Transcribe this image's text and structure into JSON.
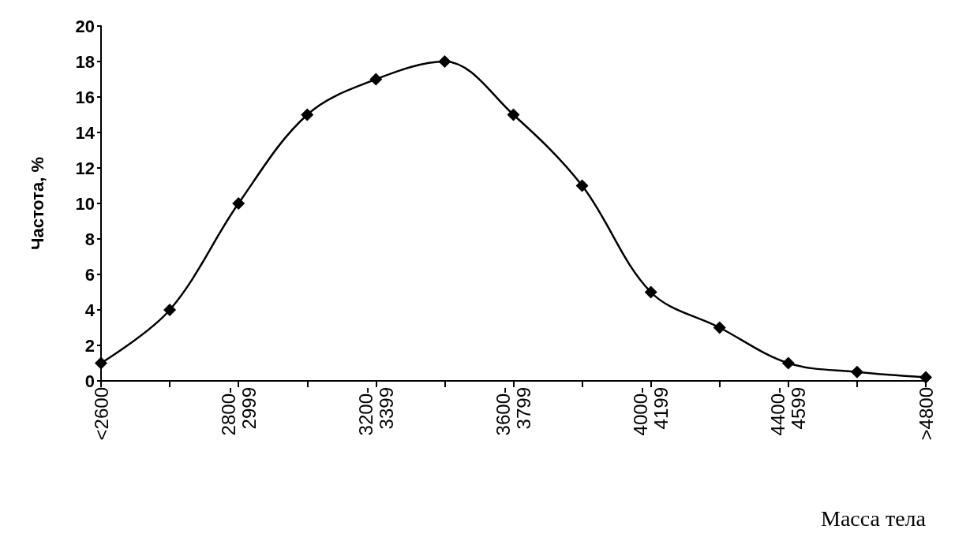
{
  "chart_data": {
    "type": "line",
    "xlabel": "Масса тела",
    "ylabel": "Частота, %",
    "categories": [
      "<2600",
      null,
      "2800-\n2999",
      null,
      "3200-\n3399",
      null,
      "3600-\n3799",
      null,
      "4000-\n4199",
      null,
      "4400-\n4599",
      null,
      ">4800"
    ],
    "series": [
      {
        "color": "#000000",
        "values": [
          1,
          4,
          10,
          15,
          17,
          18,
          15,
          11,
          5,
          3,
          1,
          0.5,
          0.2
        ]
      }
    ],
    "ylim": [
      0,
      20
    ],
    "yticks": [
      0,
      2,
      4,
      6,
      8,
      10,
      12,
      14,
      16,
      18,
      20
    ],
    "grid": false,
    "marker": "diamond",
    "line_style": "solid"
  }
}
